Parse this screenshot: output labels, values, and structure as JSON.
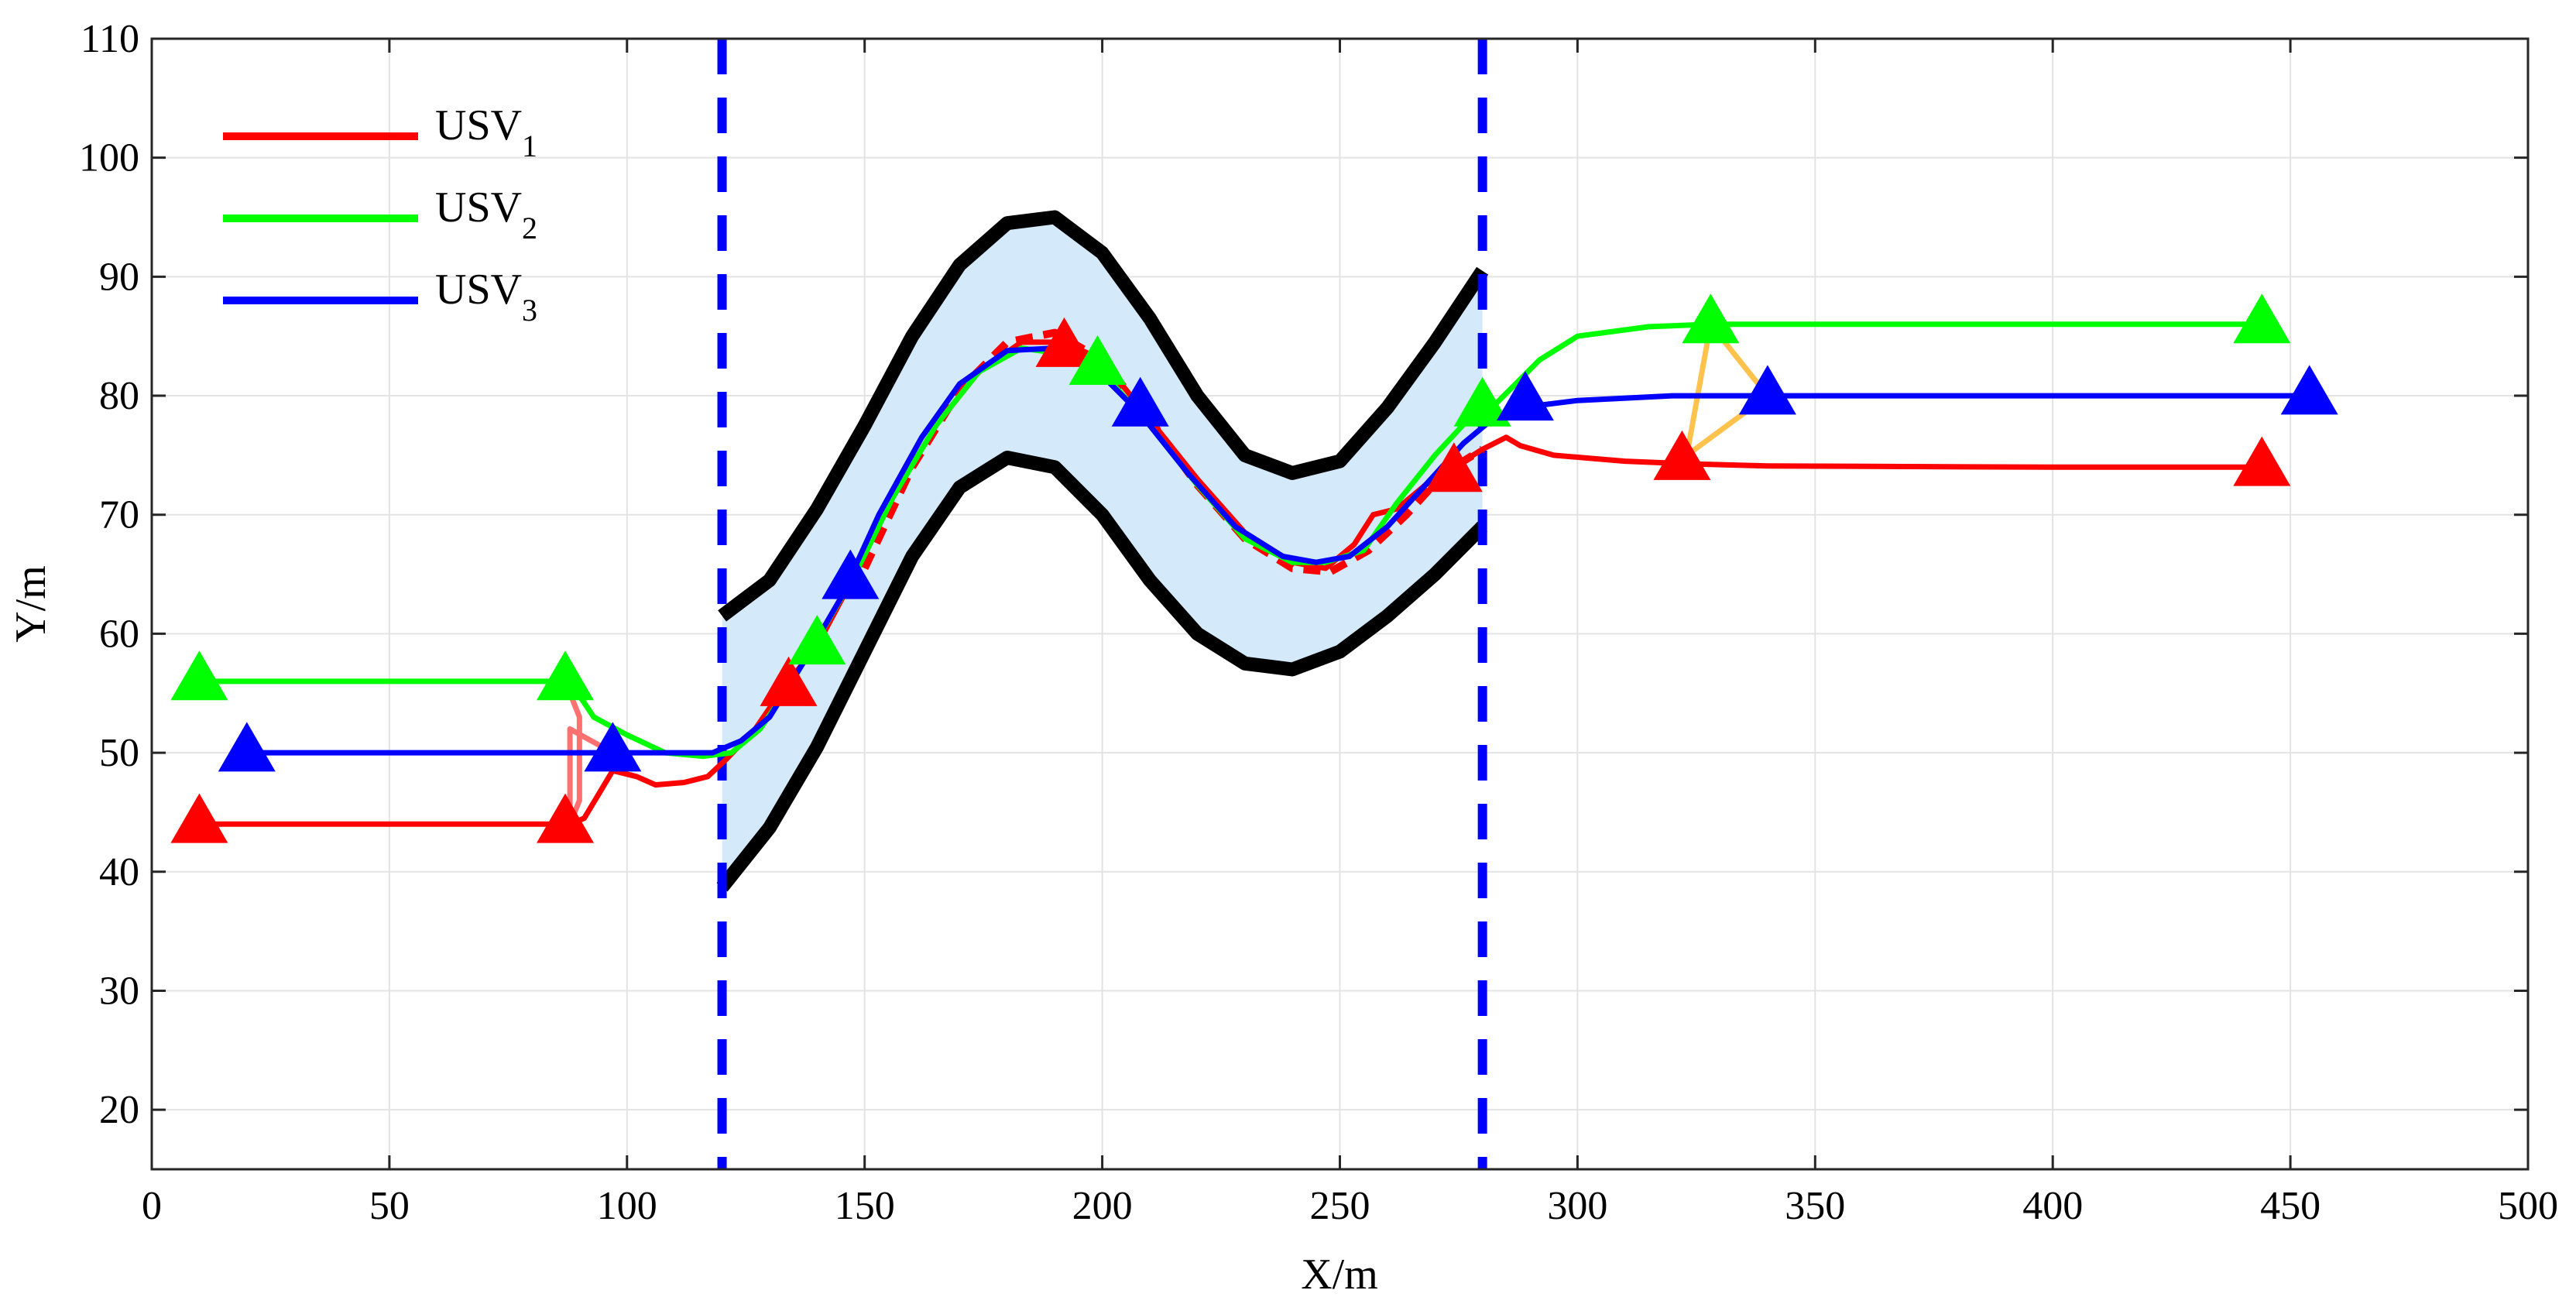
{
  "chart_data": {
    "type": "line",
    "title": "",
    "xlabel": "X/m",
    "ylabel": "Y/m",
    "xlim": [
      0,
      500
    ],
    "ylim": [
      15,
      110
    ],
    "xticks": [
      0,
      50,
      100,
      150,
      200,
      250,
      300,
      350,
      400,
      450,
      500
    ],
    "yticks": [
      20,
      30,
      40,
      50,
      60,
      70,
      80,
      90,
      100,
      110
    ],
    "grid": true,
    "legend_position": "top-left",
    "legend": [
      {
        "label": "USV",
        "sub": "1",
        "color": "#ff0000"
      },
      {
        "label": "USV",
        "sub": "2",
        "color": "#00ff00"
      },
      {
        "label": "USV",
        "sub": "3",
        "color": "#0000ff"
      }
    ],
    "series": [
      {
        "color": "#ff0000",
        "points": [
          [
            10,
            44
          ],
          [
            88,
            44
          ],
          [
            91,
            44.5
          ],
          [
            94,
            46.5
          ],
          [
            97,
            48.5
          ],
          [
            102,
            48
          ],
          [
            106,
            47.3
          ],
          [
            112,
            47.5
          ],
          [
            117,
            48
          ],
          [
            121,
            49.5
          ],
          [
            127,
            52
          ],
          [
            133,
            55.5
          ],
          [
            140,
            59
          ],
          [
            148,
            65
          ],
          [
            156,
            71.5
          ],
          [
            165,
            77.5
          ],
          [
            174,
            82
          ],
          [
            183,
            84.5
          ],
          [
            192,
            84.5
          ],
          [
            200,
            83
          ],
          [
            210,
            78
          ],
          [
            220,
            73
          ],
          [
            230,
            68.5
          ],
          [
            240,
            66
          ],
          [
            247,
            65.5
          ],
          [
            253,
            67.5
          ],
          [
            257,
            70
          ],
          [
            262,
            70.5
          ],
          [
            268,
            72.5
          ],
          [
            274,
            74
          ],
          [
            280,
            75.5
          ],
          [
            285,
            76.5
          ],
          [
            288,
            75.8
          ],
          [
            295,
            75
          ],
          [
            310,
            74.5
          ],
          [
            322,
            74.3
          ],
          [
            340,
            74.1
          ],
          [
            400,
            74
          ],
          [
            445,
            74
          ]
        ]
      },
      {
        "color": "#00ff00",
        "points": [
          [
            10,
            56
          ],
          [
            88,
            56
          ],
          [
            93,
            53
          ],
          [
            100,
            51.5
          ],
          [
            108,
            50
          ],
          [
            116,
            49.7
          ],
          [
            122,
            50
          ],
          [
            128,
            52
          ],
          [
            134,
            55.5
          ],
          [
            140,
            59.5
          ],
          [
            148,
            65
          ],
          [
            156,
            71.5
          ],
          [
            165,
            77.5
          ],
          [
            174,
            82
          ],
          [
            183,
            84
          ],
          [
            192,
            83.5
          ],
          [
            200,
            82
          ],
          [
            210,
            77.5
          ],
          [
            220,
            72.5
          ],
          [
            230,
            68
          ],
          [
            240,
            66
          ],
          [
            247,
            66
          ],
          [
            255,
            67
          ],
          [
            262,
            71
          ],
          [
            270,
            75
          ],
          [
            277,
            78
          ],
          [
            282,
            79
          ],
          [
            287,
            81
          ],
          [
            292,
            83
          ],
          [
            300,
            85
          ],
          [
            315,
            85.8
          ],
          [
            328,
            86
          ],
          [
            380,
            86
          ],
          [
            445,
            86
          ]
        ]
      },
      {
        "color": "#0000ff",
        "points": [
          [
            20,
            50
          ],
          [
            97,
            50
          ],
          [
            110,
            50
          ],
          [
            118,
            50
          ],
          [
            124,
            51
          ],
          [
            130,
            53
          ],
          [
            137,
            57.5
          ],
          [
            145,
            63
          ],
          [
            153,
            70
          ],
          [
            162,
            76.5
          ],
          [
            170,
            81
          ],
          [
            180,
            83.8
          ],
          [
            190,
            84
          ],
          [
            198,
            82.5
          ],
          [
            208,
            78.5
          ],
          [
            218,
            73.5
          ],
          [
            228,
            69
          ],
          [
            238,
            66.5
          ],
          [
            245,
            66
          ],
          [
            252,
            66.5
          ],
          [
            260,
            69
          ],
          [
            268,
            72.5
          ],
          [
            276,
            76
          ],
          [
            282,
            78
          ],
          [
            288,
            79
          ],
          [
            300,
            79.6
          ],
          [
            320,
            80
          ],
          [
            400,
            80
          ],
          [
            454,
            80
          ]
        ]
      }
    ],
    "reference_path": {
      "color": "#ff0000",
      "style": "dashed",
      "points": [
        [
          150,
          65.5
        ],
        [
          160,
          74
        ],
        [
          170,
          80.5
        ],
        [
          180,
          84.5
        ],
        [
          190,
          85.3
        ],
        [
          200,
          83
        ],
        [
          210,
          78
        ],
        [
          220,
          72.5
        ],
        [
          230,
          68
        ],
        [
          240,
          65.5
        ],
        [
          248,
          65.2
        ],
        [
          256,
          67
        ],
        [
          264,
          70
        ],
        [
          272,
          73.5
        ],
        [
          280,
          75.5
        ]
      ]
    },
    "channel": {
      "fill": "#d4e9fa",
      "x": [
        120,
        130,
        140,
        150,
        160,
        170,
        180,
        190,
        200,
        210,
        220,
        230,
        240,
        250,
        260,
        270,
        280
      ],
      "upper": [
        61.5,
        64.5,
        70.5,
        77.5,
        85,
        91,
        94.5,
        95,
        92,
        86.5,
        80,
        75,
        73.5,
        74.5,
        79,
        84.5,
        90.5
      ],
      "lower": [
        38.7,
        43.7,
        50.5,
        58.5,
        66.5,
        72.3,
        74.8,
        74,
        70,
        64.5,
        60,
        57.5,
        57,
        58.5,
        61.5,
        65,
        69
      ]
    },
    "boundaries": [
      {
        "x": 120,
        "color": "#0000ff",
        "style": "dashed"
      },
      {
        "x": 280,
        "color": "#0000ff",
        "style": "dashed"
      }
    ],
    "formation_links": [
      {
        "color": "#ff7070",
        "points": [
          [
            87,
            56
          ],
          [
            90,
            53
          ],
          [
            90,
            46
          ],
          [
            88,
            44
          ],
          [
            88,
            52
          ],
          [
            97,
            50
          ]
        ]
      },
      {
        "color": "#ffc34d",
        "points": [
          [
            323,
            75
          ],
          [
            328,
            86
          ],
          [
            340,
            80
          ],
          [
            323,
            75
          ]
        ]
      }
    ],
    "markers": [
      {
        "color": "#ff0000",
        "x": 10,
        "y": 44
      },
      {
        "color": "#00ff00",
        "x": 10,
        "y": 56
      },
      {
        "color": "#0000ff",
        "x": 20,
        "y": 50
      },
      {
        "color": "#00ff00",
        "x": 87,
        "y": 56
      },
      {
        "color": "#ff0000",
        "x": 87,
        "y": 44
      },
      {
        "color": "#0000ff",
        "x": 97,
        "y": 50
      },
      {
        "color": "#ff0000",
        "x": 134,
        "y": 55.5
      },
      {
        "color": "#00ff00",
        "x": 140,
        "y": 59
      },
      {
        "color": "#0000ff",
        "x": 147,
        "y": 64.5
      },
      {
        "color": "#ff0000",
        "x": 192,
        "y": 84
      },
      {
        "color": "#00ff00",
        "x": 199,
        "y": 82.5
      },
      {
        "color": "#0000ff",
        "x": 208,
        "y": 79
      },
      {
        "color": "#ff0000",
        "x": 274,
        "y": 73.5
      },
      {
        "color": "#00ff00",
        "x": 280,
        "y": 79
      },
      {
        "color": "#0000ff",
        "x": 289,
        "y": 79.5
      },
      {
        "color": "#ff0000",
        "x": 322,
        "y": 74.5
      },
      {
        "color": "#00ff00",
        "x": 328,
        "y": 86
      },
      {
        "color": "#0000ff",
        "x": 340,
        "y": 80
      },
      {
        "color": "#ff0000",
        "x": 444,
        "y": 74
      },
      {
        "color": "#00ff00",
        "x": 444,
        "y": 86
      },
      {
        "color": "#0000ff",
        "x": 454,
        "y": 80
      }
    ]
  }
}
